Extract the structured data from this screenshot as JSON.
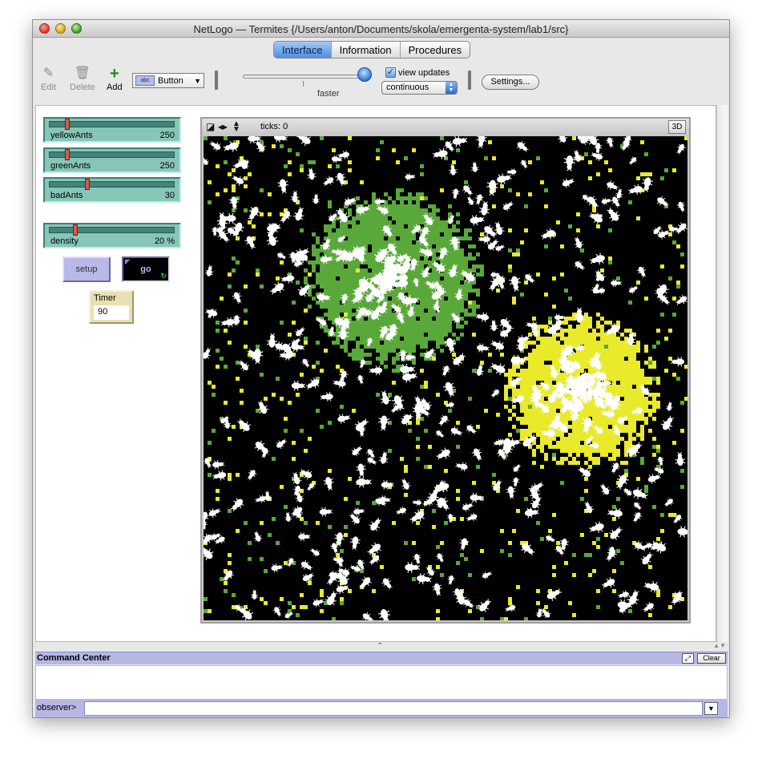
{
  "window": {
    "title": "NetLogo — Termites {/Users/anton/Documents/skola/emergenta-system/lab1/src}"
  },
  "tabs": [
    {
      "label": "Interface",
      "active": true
    },
    {
      "label": "Information",
      "active": false
    },
    {
      "label": "Procedures",
      "active": false
    }
  ],
  "toolbar": {
    "edit_label": "Edit",
    "delete_label": "Delete",
    "add_label": "Add",
    "widget_type": "Button",
    "speed_label": "faster",
    "view_updates_label": "view updates",
    "view_updates_checked": true,
    "update_mode": "continuous",
    "settings_label": "Settings..."
  },
  "sliders": [
    {
      "name": "yellowAnts",
      "value": "250",
      "fraction": 0.13
    },
    {
      "name": "greenAnts",
      "value": "250",
      "fraction": 0.13
    },
    {
      "name": "badAnts",
      "value": "30",
      "fraction": 0.3
    },
    {
      "name": "density",
      "value": "20 %",
      "fraction": 0.2
    }
  ],
  "buttons": {
    "setup_label": "setup",
    "go_label": "go"
  },
  "monitor": {
    "label": "Timer",
    "value": "90"
  },
  "view": {
    "ticks_label": "ticks: 0",
    "three_d_label": "3D"
  },
  "command_center": {
    "title": "Command Center",
    "clear_label": "Clear",
    "prompt": "observer>",
    "input_value": ""
  },
  "colors": {
    "slider_bg": "#88c5b9",
    "button_bg": "#b8b9e9",
    "monitor_bg": "#e9dfb3",
    "green_pile": "#59a83a",
    "yellow_pile": "#e8ea2a",
    "ant": "#ffffff",
    "world_bg": "#000000"
  }
}
